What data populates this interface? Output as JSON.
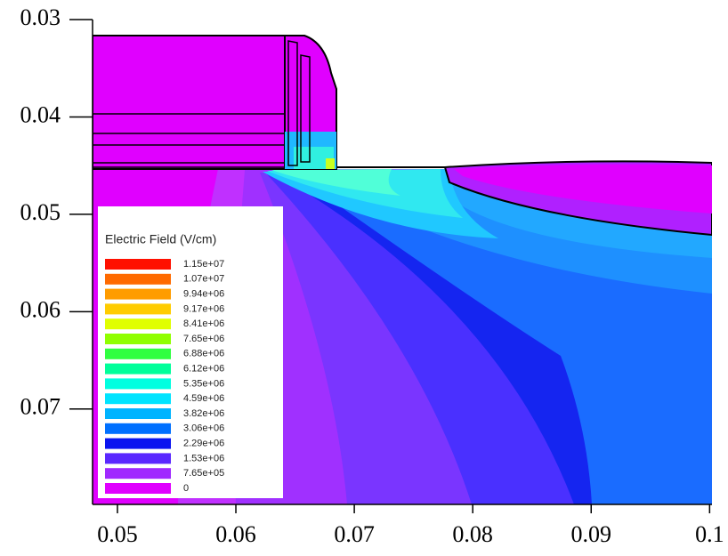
{
  "chart_data": {
    "type": "contour",
    "xlim": [
      0.0479,
      0.1002
    ],
    "ylim": [
      0.03,
      0.0798
    ],
    "invert_y": true,
    "xticks": [
      0.05,
      0.06,
      0.07,
      0.08,
      0.09,
      0.1
    ],
    "yticks": [
      0.03,
      0.04,
      0.05,
      0.06,
      0.07
    ],
    "colorbar": {
      "title": "Electric Field (V/cm)",
      "ticks": [
        {
          "value": 11500000,
          "label": "1.15e+07"
        },
        {
          "value": 10700000,
          "label": "1.07e+07"
        },
        {
          "value": 9940000,
          "label": "9.94e+06"
        },
        {
          "value": 9170000,
          "label": "9.17e+06"
        },
        {
          "value": 8410000,
          "label": "8.41e+06"
        },
        {
          "value": 7650000,
          "label": "7.65e+06"
        },
        {
          "value": 6880000,
          "label": "6.88e+06"
        },
        {
          "value": 6120000,
          "label": "6.12e+06"
        },
        {
          "value": 5350000,
          "label": "5.35e+06"
        },
        {
          "value": 4590000,
          "label": "4.59e+06"
        },
        {
          "value": 3820000,
          "label": "3.82e+06"
        },
        {
          "value": 3060000,
          "label": "3.06e+06"
        },
        {
          "value": 2290000,
          "label": "2.29e+06"
        },
        {
          "value": 1530000,
          "label": "1.53e+06"
        },
        {
          "value": 765000,
          "label": "7.65e+05"
        },
        0
      ],
      "colors": [
        "#ff1000",
        "#ff6a00",
        "#ff9c00",
        "#ffcc00",
        "#e0ff00",
        "#90ff00",
        "#30ff40",
        "#00ff9a",
        "#00ffe0",
        "#00e4ff",
        "#00b4ff",
        "#0070ff",
        "#0a14f0",
        "#5a28ff",
        "#a028ff",
        "#e000ff"
      ]
    }
  }
}
